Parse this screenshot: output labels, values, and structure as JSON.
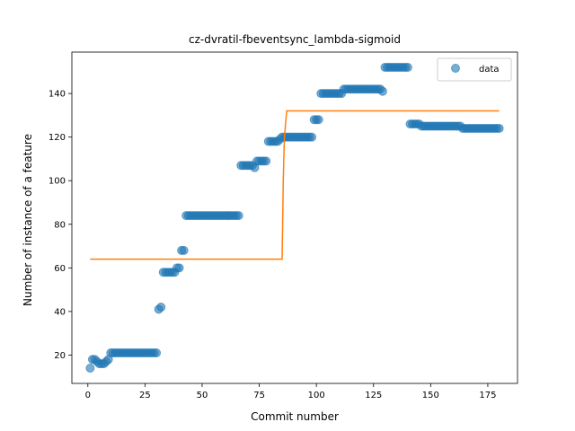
{
  "chart_data": {
    "type": "scatter",
    "title": "cz-dvratil-fbeventsync_lambda-sigmoid",
    "xlabel": "Commit number",
    "ylabel": "Number of instance of a feature",
    "xlim": [
      -7,
      188
    ],
    "ylim": [
      7,
      159
    ],
    "xticks": [
      0,
      25,
      50,
      75,
      100,
      125,
      150,
      175
    ],
    "yticks": [
      20,
      40,
      60,
      80,
      100,
      120,
      140
    ],
    "legend": {
      "placement": "top-right",
      "entries": [
        "data"
      ]
    },
    "colors": {
      "data": "#1f77b4",
      "fit": "#ff7f0e"
    },
    "series": [
      {
        "name": "data",
        "kind": "scatter",
        "segments": [
          {
            "x_start": 1,
            "x_end": 1,
            "y": 14
          },
          {
            "x_start": 2,
            "x_end": 3,
            "y": 18
          },
          {
            "x_start": 4,
            "x_end": 4,
            "y": 17
          },
          {
            "x_start": 5,
            "x_end": 7,
            "y": 16
          },
          {
            "x_start": 8,
            "x_end": 8,
            "y": 17
          },
          {
            "x_start": 9,
            "x_end": 9,
            "y": 18
          },
          {
            "x_start": 10,
            "x_end": 30,
            "y": 21
          },
          {
            "x_start": 31,
            "x_end": 31,
            "y": 41
          },
          {
            "x_start": 32,
            "x_end": 32,
            "y": 42
          },
          {
            "x_start": 33,
            "x_end": 38,
            "y": 58
          },
          {
            "x_start": 39,
            "x_end": 40,
            "y": 60
          },
          {
            "x_start": 41,
            "x_end": 42,
            "y": 68
          },
          {
            "x_start": 43,
            "x_end": 66,
            "y": 84
          },
          {
            "x_start": 67,
            "x_end": 72,
            "y": 107
          },
          {
            "x_start": 73,
            "x_end": 73,
            "y": 106
          },
          {
            "x_start": 74,
            "x_end": 78,
            "y": 109
          },
          {
            "x_start": 79,
            "x_end": 83,
            "y": 118
          },
          {
            "x_start": 84,
            "x_end": 84,
            "y": 119
          },
          {
            "x_start": 85,
            "x_end": 98,
            "y": 120
          },
          {
            "x_start": 99,
            "x_end": 101,
            "y": 128
          },
          {
            "x_start": 102,
            "x_end": 111,
            "y": 140
          },
          {
            "x_start": 112,
            "x_end": 128,
            "y": 142
          },
          {
            "x_start": 129,
            "x_end": 129,
            "y": 141
          },
          {
            "x_start": 130,
            "x_end": 140,
            "y": 152
          },
          {
            "x_start": 141,
            "x_end": 145,
            "y": 126
          },
          {
            "x_start": 146,
            "x_end": 163,
            "y": 125
          },
          {
            "x_start": 164,
            "x_end": 180,
            "y": 124
          }
        ]
      },
      {
        "name": "",
        "kind": "line",
        "points": [
          [
            1,
            64
          ],
          [
            85,
            64
          ],
          [
            85.5,
            100
          ],
          [
            86,
            120
          ],
          [
            87,
            132
          ],
          [
            180,
            132
          ]
        ]
      }
    ]
  }
}
